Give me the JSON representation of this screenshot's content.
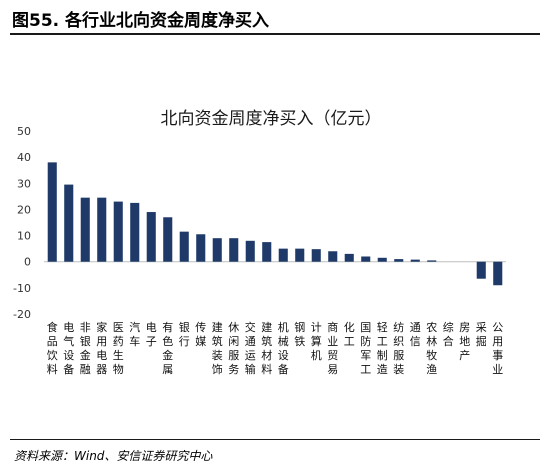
{
  "figure": {
    "title": "图55. 各行业北向资金周度净买入",
    "source": "资料来源：Wind、安信证券研究中心"
  },
  "colors": {
    "bar": "#1f3a68",
    "axis": "#bfbfbf",
    "rule": "#1a1a1a"
  },
  "chart_data": {
    "type": "bar",
    "title": "北向资金周度净买入（亿元）",
    "xlabel": "",
    "ylabel": "",
    "ylim": [
      -20,
      50
    ],
    "yticks": [
      -20,
      -10,
      0,
      10,
      20,
      30,
      40,
      50
    ],
    "grid": false,
    "categories": [
      "食品饮料",
      "电气设备",
      "非银金融",
      "家用电器",
      "医药生物",
      "汽车",
      "电子",
      "有色金属",
      "银行",
      "传媒",
      "建筑装饰",
      "休闲服务",
      "交通运输",
      "建筑材料",
      "机械设备",
      "钢铁",
      "计算机",
      "商业贸易",
      "化工",
      "国防军工",
      "轻工制造",
      "纺织服装",
      "通信",
      "农林牧渔",
      "综合",
      "房地产",
      "采掘",
      "公用事业"
    ],
    "values": [
      38,
      29.5,
      24.5,
      24.5,
      23,
      22.5,
      19,
      17,
      11.5,
      10.5,
      9,
      9,
      8,
      7.5,
      5,
      5,
      4.8,
      4,
      3,
      2,
      1.5,
      1,
      0.8,
      0.5,
      0,
      0,
      -6.5,
      -9
    ]
  }
}
